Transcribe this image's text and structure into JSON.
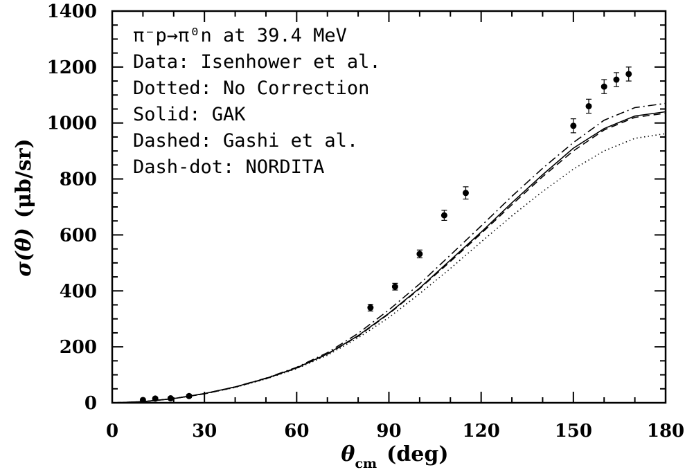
{
  "chart_data": {
    "type": "scatter",
    "title": "",
    "xlabel": {
      "symbol": "θ",
      "subscript": "cm",
      "unit": "(deg)"
    },
    "ylabel": {
      "symbol": "σ(θ)",
      "unit": "(μb/sr)"
    },
    "xlim": [
      0,
      180
    ],
    "ylim": [
      0,
      1400
    ],
    "xticks": [
      0,
      30,
      60,
      90,
      120,
      150,
      180
    ],
    "yticks": [
      0,
      200,
      400,
      600,
      800,
      1000,
      1200,
      1400
    ],
    "grid": false,
    "legend_placement": "top-left",
    "annotations": {
      "reaction": "π⁻p→π⁰n at 39.4 MeV",
      "data": "Data: Isenhower et al.",
      "dotted": "Dotted: No Correction",
      "solid": "Solid: GAK",
      "dashed": "Dashed: Gashi et al.",
      "dashdot": "Dash-dot: NORDITA"
    },
    "points": {
      "name": "Isenhower et al.",
      "x": [
        10,
        14,
        19,
        25,
        84,
        92,
        100,
        108,
        115,
        150,
        155,
        160,
        164,
        168
      ],
      "y": [
        10,
        15,
        16,
        24,
        340,
        415,
        532,
        670,
        750,
        990,
        1060,
        1130,
        1155,
        1175
      ],
      "err": [
        4,
        4,
        4,
        5,
        12,
        12,
        14,
        18,
        22,
        25,
        25,
        25,
        25,
        25
      ]
    },
    "curves": [
      {
        "name": "No Correction",
        "style": "dotted",
        "x": [
          0,
          10,
          20,
          30,
          40,
          50,
          60,
          70,
          80,
          90,
          100,
          110,
          120,
          130,
          140,
          150,
          160,
          170,
          180
        ],
        "y": [
          0,
          4,
          15,
          32,
          55,
          85,
          122,
          170,
          232,
          305,
          390,
          480,
          575,
          668,
          755,
          835,
          900,
          945,
          962
        ]
      },
      {
        "name": "GAK",
        "style": "solid",
        "x": [
          0,
          10,
          20,
          30,
          40,
          50,
          60,
          70,
          80,
          90,
          100,
          110,
          120,
          130,
          140,
          150,
          160,
          170,
          180
        ],
        "y": [
          0,
          4,
          15,
          33,
          57,
          87,
          125,
          175,
          240,
          320,
          410,
          510,
          610,
          715,
          815,
          910,
          980,
          1025,
          1040
        ]
      },
      {
        "name": "Gashi et al.",
        "style": "dashed",
        "x": [
          0,
          10,
          20,
          30,
          40,
          50,
          60,
          70,
          80,
          90,
          100,
          110,
          120,
          130,
          140,
          150,
          160,
          170,
          180
        ],
        "y": [
          0,
          4,
          15,
          32,
          56,
          86,
          124,
          174,
          238,
          318,
          408,
          505,
          605,
          708,
          808,
          900,
          975,
          1020,
          1035
        ]
      },
      {
        "name": "NORDITA",
        "style": "dashdot",
        "x": [
          0,
          10,
          20,
          30,
          40,
          50,
          60,
          70,
          80,
          90,
          100,
          110,
          120,
          130,
          140,
          150,
          160,
          170,
          180
        ],
        "y": [
          0,
          4,
          15,
          33,
          57,
          88,
          127,
          179,
          248,
          332,
          425,
          528,
          632,
          738,
          838,
          930,
          1010,
          1055,
          1070
        ]
      }
    ]
  }
}
